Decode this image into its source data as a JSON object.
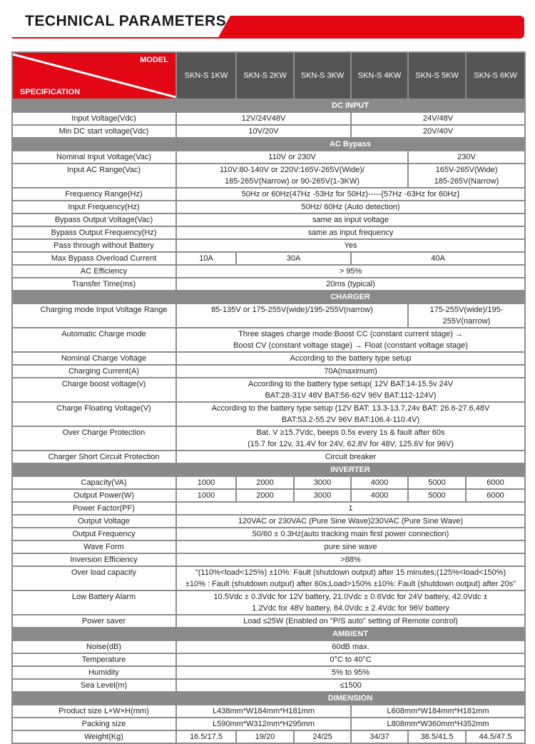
{
  "title": "TECHNICAL PARAMETERS",
  "colors": {
    "accent": "#e30613",
    "header_model_bg": "#555555",
    "section_bg": "#8a8a8a"
  },
  "header": {
    "model_label": "MODEL",
    "spec_label": "SPECIFICATION",
    "models": [
      "SKN-S 1KW",
      "SKN-S 2KW",
      "SKN-S 3KW",
      "SKN-S 4KW",
      "SKN-S 5KW",
      "SKN-S 6KW"
    ]
  },
  "sections": [
    {
      "title": "DC INPUT",
      "rows": [
        {
          "label": "Input Voltage(Vdc)",
          "cells": [
            {
              "text": "12V/24V48V",
              "span": 3
            },
            {
              "text": "24V/48V",
              "span": 3
            }
          ]
        },
        {
          "label": "Min DC start voltage(Vdc)",
          "cells": [
            {
              "text": "10V/20V",
              "span": 3
            },
            {
              "text": "20V/40V",
              "span": 3
            }
          ]
        }
      ]
    },
    {
      "title": "AC Bypass",
      "rows": [
        {
          "label": "Nominal Input Voltage(Vac)",
          "cells": [
            {
              "text": "110V or 230V",
              "span": 4
            },
            {
              "text": "230V",
              "span": 2
            }
          ]
        },
        {
          "label": "Input AC Range(Vac)",
          "lines": 2,
          "cells": [
            {
              "text": "110V:80-140V or 220V:165V-265V(Wide)/\n185-265V(Narrow) or 90-265V(1-3KW)",
              "span": 4
            },
            {
              "text": "165V-265V(Wide)\n185-265V(Narrow)",
              "span": 2
            }
          ]
        },
        {
          "label": "Frequency Range(Hz)",
          "cells": [
            {
              "text": "50Hz or 60Hz(47Hz -53Hz for 50Hz)-----{57Hz -63Hz for 60Hz}",
              "span": 6
            }
          ]
        },
        {
          "label": "Input Frequency(Hz)",
          "cells": [
            {
              "text": "50Hz/ 60Hz  (Auto detection)",
              "span": 6
            }
          ]
        },
        {
          "label": "Bypass Output Voltage(Vac)",
          "cells": [
            {
              "text": "same as input voltage",
              "span": 6
            }
          ]
        },
        {
          "label": "Bypass Output Frequency(Hz)",
          "cells": [
            {
              "text": "same as input frequency",
              "span": 6
            }
          ]
        },
        {
          "label": "Pass through without Battery",
          "cells": [
            {
              "text": "Yes",
              "span": 6
            }
          ]
        },
        {
          "label": "Max Bypass Overload Current",
          "cells": [
            {
              "text": "10A",
              "span": 1
            },
            {
              "text": "30A",
              "span": 2
            },
            {
              "text": "40A",
              "span": 3
            }
          ]
        },
        {
          "label": "AC  Efficiency",
          "cells": [
            {
              "text": "> 95%",
              "span": 6
            }
          ]
        },
        {
          "label": "Transfer Time(ms)",
          "cells": [
            {
              "text": "20ms (typical)",
              "span": 6
            }
          ]
        }
      ]
    },
    {
      "title": "CHARGER",
      "rows": [
        {
          "label": "Charging mode Input Voltage Range",
          "cells": [
            {
              "text": "85-135V or 175-255V(wide)/195-255V(narrow)",
              "span": 4
            },
            {
              "text": "175-255V(wide)/195-255V(narrow)",
              "span": 2,
              "small": true
            }
          ]
        },
        {
          "label": "Automatic Charge mode",
          "lines": 2,
          "cells": [
            {
              "text": "Three stages charge mode:Boost CC (constant current stage) →\nBoost CV (constant voltage stage) → Float (constant voltage stage)",
              "span": 6
            }
          ]
        },
        {
          "label": "Nominal Charge Voltage",
          "cells": [
            {
              "text": "According to the battery type setup",
              "span": 6
            }
          ]
        },
        {
          "label": "Charging Current(A)",
          "cells": [
            {
              "text": "70A(maximum)",
              "span": 6
            }
          ]
        },
        {
          "label": "Charge boost voltage(v)",
          "lines": 2,
          "cells": [
            {
              "text": "According to the battery type setup( 12V BAT:14-15.5v 24V\nBAT:28-31V 48V BAT:56-62V  96V BAT:112-124V)",
              "span": 6
            }
          ]
        },
        {
          "label": "Charge Floating Voltage(V)",
          "lines": 2,
          "cells": [
            {
              "text": "According to the battery type setup (12V BAT: 13.3-13.7,24v BAT: 26.6-27.6,48V\nBAT:53.2-55.2V 96V BAT:106.4-110.4V)",
              "span": 6
            }
          ]
        },
        {
          "label": "Over Charge Protection",
          "lines": 2,
          "cells": [
            {
              "text": "Bat. V ≥15.7Vdc, beeps 0.5s every 1s & fault after 60s\n(15.7 for 12v,  31.4V for 24V,  62.8V for 48V,  125.6V for 96V)",
              "span": 6
            }
          ]
        },
        {
          "label": "Charger Short Circuit Protection",
          "cells": [
            {
              "text": "Circuit breaker",
              "span": 6
            }
          ]
        }
      ]
    },
    {
      "title": "INVERTER",
      "rows": [
        {
          "label": "Capacity(VA)",
          "cells": [
            {
              "text": "1000",
              "span": 1
            },
            {
              "text": "2000",
              "span": 1
            },
            {
              "text": "3000",
              "span": 1
            },
            {
              "text": "4000",
              "span": 1
            },
            {
              "text": "5000",
              "span": 1
            },
            {
              "text": "6000",
              "span": 1
            }
          ]
        },
        {
          "label": "Output Power(W)",
          "cells": [
            {
              "text": "1000",
              "span": 1
            },
            {
              "text": "2000",
              "span": 1
            },
            {
              "text": "3000",
              "span": 1
            },
            {
              "text": "4000",
              "span": 1
            },
            {
              "text": "5000",
              "span": 1
            },
            {
              "text": "6000",
              "span": 1
            }
          ]
        },
        {
          "label": "Power Factor(PF)",
          "cells": [
            {
              "text": "1",
              "span": 6
            }
          ]
        },
        {
          "label": "Output Voltage",
          "cells": [
            {
              "text": "120VAC or 230VAC  (Pure Sine Wave)230VAC  (Pure Sine Wave)",
              "span": 6
            }
          ]
        },
        {
          "label": "Output Frequency",
          "cells": [
            {
              "text": "50/60 ± 0.3Hz(auto tracking main first power connection)",
              "span": 6
            }
          ]
        },
        {
          "label": "Wave Form",
          "cells": [
            {
              "text": "pure sine wave",
              "span": 6
            }
          ]
        },
        {
          "label": "Inversion Efficiency",
          "cells": [
            {
              "text": ">88%",
              "span": 6
            }
          ]
        },
        {
          "label": "Over load capacity",
          "lines": 2,
          "cells": [
            {
              "text": "\"(110%<load<125%) ±10%: Fault (shutdown output) after 15 minutes;(125%<load<150%)\n±10% : Fault (shutdown output) after 60s;Load>150% ±10%:  Fault (shutdown output) after 20s\"",
              "span": 6
            }
          ]
        },
        {
          "label": "Low Battery Alarm",
          "lines": 2,
          "cells": [
            {
              "text": "10.5Vdc ± 0.3Vdc for 12V battery,  21.0Vdc ± 0.6Vdc for 24V battery,  42.0Vdc ±\n1.2Vdc for 48V battery, 84.0Vdc ± 2.4Vdc for 96V battery",
              "span": 6
            }
          ]
        },
        {
          "label": "Power saver",
          "cells": [
            {
              "text": "Load ≤25W (Enabled on \"P/S auto\" setting of Remote control)",
              "span": 6
            }
          ]
        }
      ]
    },
    {
      "title": "AMBIENT",
      "rows": [
        {
          "label": "Noise(dB)",
          "cells": [
            {
              "text": "60dB max.",
              "span": 6
            }
          ]
        },
        {
          "label": "Temperature",
          "cells": [
            {
              "text": "0°C to 40°C",
              "span": 6
            }
          ]
        },
        {
          "label": "Humidity",
          "cells": [
            {
              "text": "5% to 95%",
              "span": 6
            }
          ]
        },
        {
          "label": "Sea Level(m)",
          "cells": [
            {
              "text": "≤1500",
              "span": 6
            }
          ]
        }
      ]
    },
    {
      "title": "DIMENSION",
      "rows": [
        {
          "label": "Product size  L×W×H(mm)",
          "cells": [
            {
              "text": "L438mm*W184mm*H181mm",
              "span": 3
            },
            {
              "text": "L608mm*W184mm*H181mm",
              "span": 3
            }
          ]
        },
        {
          "label": "Packing size",
          "cells": [
            {
              "text": "L590mm*W312mm*H295mm",
              "span": 3
            },
            {
              "text": "L808mm*W360mm*H352mm",
              "span": 3
            }
          ]
        },
        {
          "label": "Weight(Kg)",
          "cells": [
            {
              "text": "16.5/17.5",
              "span": 1
            },
            {
              "text": "19/20",
              "span": 1
            },
            {
              "text": "24/25",
              "span": 1
            },
            {
              "text": "34/37",
              "span": 1
            },
            {
              "text": "38.5/41.5",
              "span": 1
            },
            {
              "text": "44.5/47.5",
              "span": 1
            }
          ]
        }
      ]
    }
  ]
}
